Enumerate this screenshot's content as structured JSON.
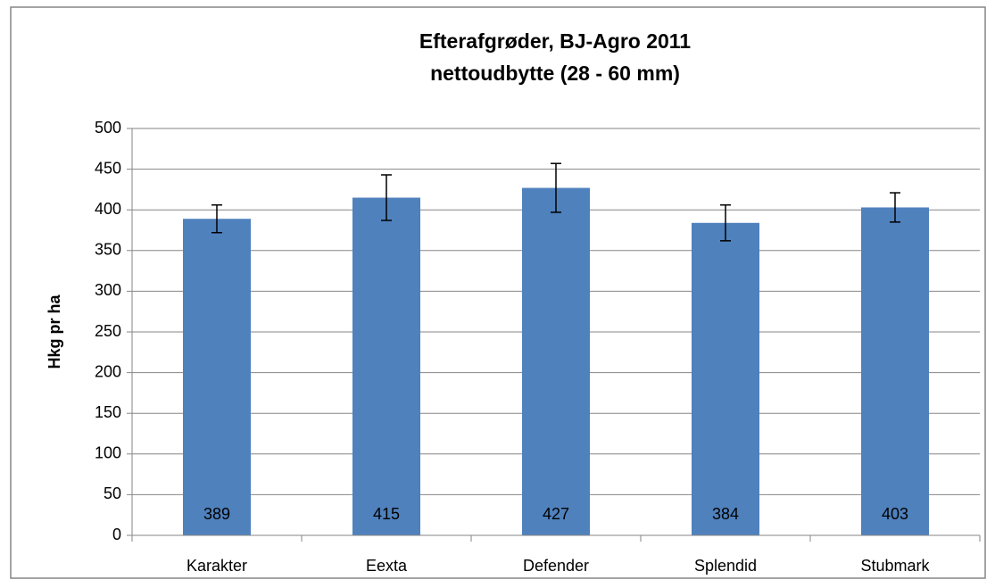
{
  "chart_data": {
    "type": "bar",
    "title": "Efterafgrøder, BJ-Agro 2011",
    "subtitle": "nettoudbytte (28 - 60 mm)",
    "y_label": "Hkg pr ha",
    "categories": [
      "Karakter",
      "Eexta",
      "Defender",
      "Splendid",
      "Stubmark"
    ],
    "values": [
      389,
      415,
      427,
      384,
      403
    ],
    "errors": [
      17,
      28,
      30,
      22,
      18
    ],
    "color": "#4f81bd",
    "ylim": [
      0,
      500
    ],
    "yticks": [
      0,
      50,
      100,
      150,
      200,
      250,
      300,
      350,
      400,
      450,
      500
    ],
    "grid": true,
    "data_labels": true
  }
}
